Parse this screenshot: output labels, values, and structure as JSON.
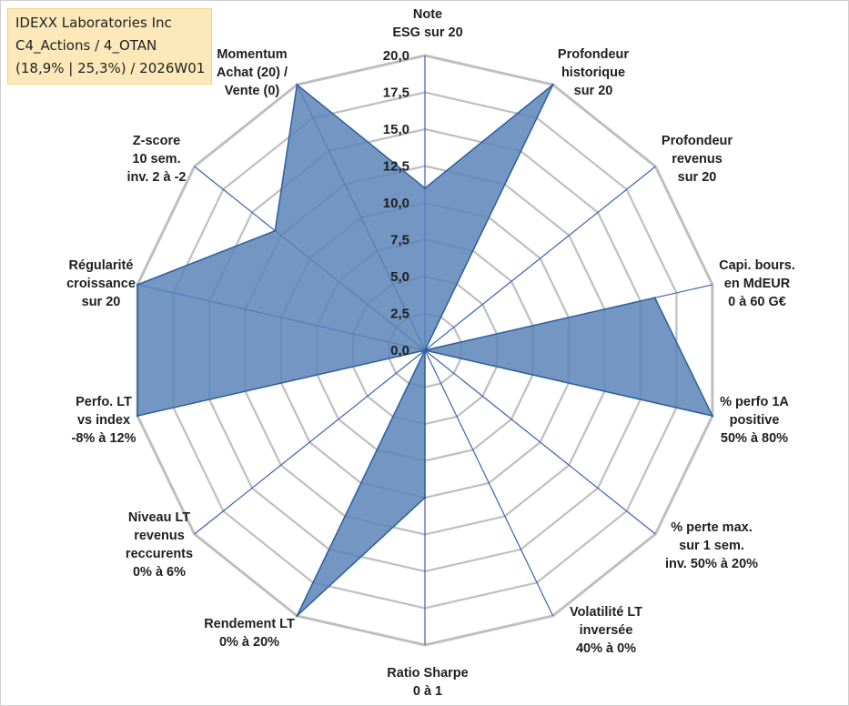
{
  "title_box": {
    "line1": "IDEXX Laboratories Inc",
    "line2": "C4_Actions / 4_OTAN",
    "line3": "(18,9% | 25,3%) / 2026W01"
  },
  "colors": {
    "fill": "#5b84b8",
    "stroke": "#2e5f9e",
    "grid": "#bfbfbf",
    "spoke": "#3a63b0"
  },
  "chart_data": {
    "type": "radar",
    "rmin": 0,
    "rmax": 20,
    "ticks": [
      "0,0",
      "2,5",
      "5,0",
      "7,5",
      "10,0",
      "12,5",
      "15,0",
      "17,5",
      "20,0"
    ],
    "tick_values": [
      0,
      2.5,
      5,
      7.5,
      10,
      12.5,
      15,
      17.5,
      20
    ],
    "axes": [
      {
        "label": [
          "Note",
          "ESG sur 20"
        ],
        "value": 11
      },
      {
        "label": [
          "Profondeur",
          "historique",
          "sur 20"
        ],
        "value": 20
      },
      {
        "label": [
          "Profondeur",
          "revenus",
          "sur 20"
        ],
        "value": 0
      },
      {
        "label": [
          "Capi. bours.",
          "en MdEUR",
          "0 à 60 G€"
        ],
        "value": 16
      },
      {
        "label": [
          "% perfo 1A",
          "positive",
          "50% à 80%"
        ],
        "value": 20
      },
      {
        "label": [
          "% perte max.",
          "sur 1 sem.",
          "inv. 50% à 20%"
        ],
        "value": 0
      },
      {
        "label": [
          "Volatilité LT",
          "inversée",
          "40% à 0%"
        ],
        "value": 0
      },
      {
        "label": [
          "Ratio Sharpe",
          "0 à 1"
        ],
        "value": 10
      },
      {
        "label": [
          "Rendement LT",
          "0% à 20%"
        ],
        "value": 20
      },
      {
        "label": [
          "Niveau LT",
          "revenus",
          "reccurents",
          "0% à 6%"
        ],
        "value": 0
      },
      {
        "label": [
          "Perfo. LT",
          "vs index",
          "-8% à 12%"
        ],
        "value": 20
      },
      {
        "label": [
          "Régularité",
          "croissance",
          "sur 20"
        ],
        "value": 20
      },
      {
        "label": [
          "Z-score",
          "10 sem.",
          "inv. 2 à -2"
        ],
        "value": 13
      },
      {
        "label": [
          "Momentum",
          "Achat (20) /",
          "Vente (0)"
        ],
        "value": 20
      }
    ]
  }
}
